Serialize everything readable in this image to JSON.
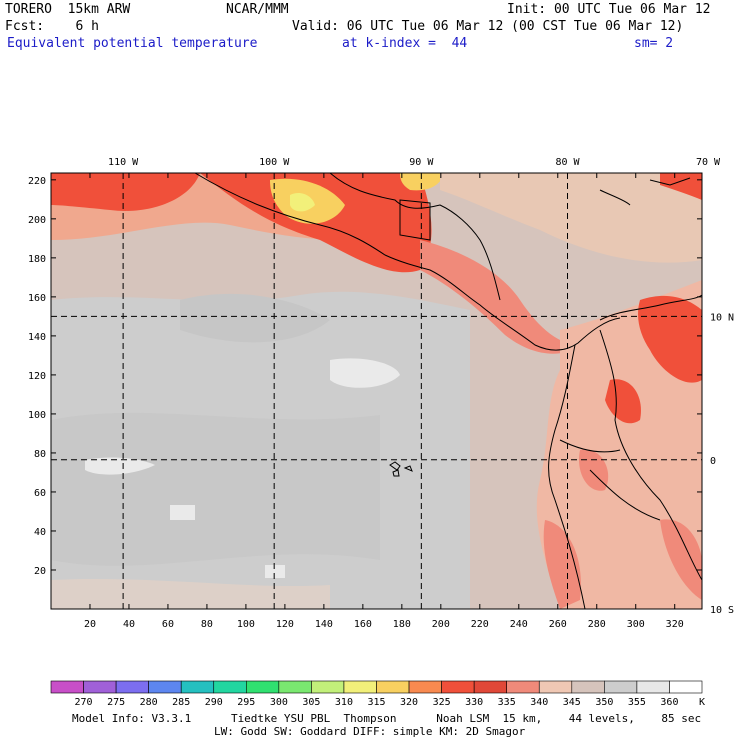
{
  "header": {
    "model": "TORERO  15km ARW",
    "center": "NCAR/MMM",
    "init": "Init: 00 UTC Tue 06 Mar 12",
    "fcst": "Fcst:    6 h",
    "valid": "Valid: 06 UTC Tue 06 Mar 12 (00 CST Tue 06 Mar 12)",
    "field": "Equivalent potential temperature",
    "level": "at k-index =  44",
    "smooth": "sm= 2"
  },
  "map": {
    "top_lon_labels": [
      "110 W",
      "100 W",
      "90 W",
      "80 W",
      "70 W"
    ],
    "right_lat_labels": [
      "10 N",
      "0",
      "10 S"
    ],
    "y_ticks": [
      "220",
      "200",
      "180",
      "160",
      "140",
      "120",
      "100",
      "80",
      "60",
      "40",
      "20"
    ],
    "x_ticks": [
      "20",
      "40",
      "60",
      "80",
      "100",
      "120",
      "140",
      "160",
      "180",
      "200",
      "220",
      "240",
      "260",
      "280",
      "300",
      "320"
    ],
    "grid_y": [
      76.5,
      150
    ],
    "grid_x": [
      37,
      114.5,
      190,
      265
    ]
  },
  "colorbar": {
    "levels": [
      "270",
      "275",
      "280",
      "285",
      "290",
      "295",
      "300",
      "305",
      "310",
      "315",
      "320",
      "325",
      "330",
      "335",
      "340",
      "345",
      "350",
      "355",
      "360"
    ],
    "unit": "K",
    "colors": [
      "#c84fc8",
      "#a060d8",
      "#7c6ef0",
      "#5d86f0",
      "#25c0c0",
      "#22d6a0",
      "#30e070",
      "#7ae870",
      "#c2f07a",
      "#f2f07a",
      "#f8d060",
      "#f88a50",
      "#f0503a",
      "#e04838",
      "#f08a7a",
      "#f0c8b4",
      "#d6c4bc",
      "#cdcdcd",
      "#e8e8e8",
      "#ffffff"
    ]
  },
  "footer": {
    "line1": "Model Info: V3.3.1      Tiedtke YSU PBL  Thompson      Noah LSM  15 km,    44 levels,    85 sec",
    "line2": "LW: Godd SW: Goddard DIFF: simple KM: 2D Smagor"
  }
}
